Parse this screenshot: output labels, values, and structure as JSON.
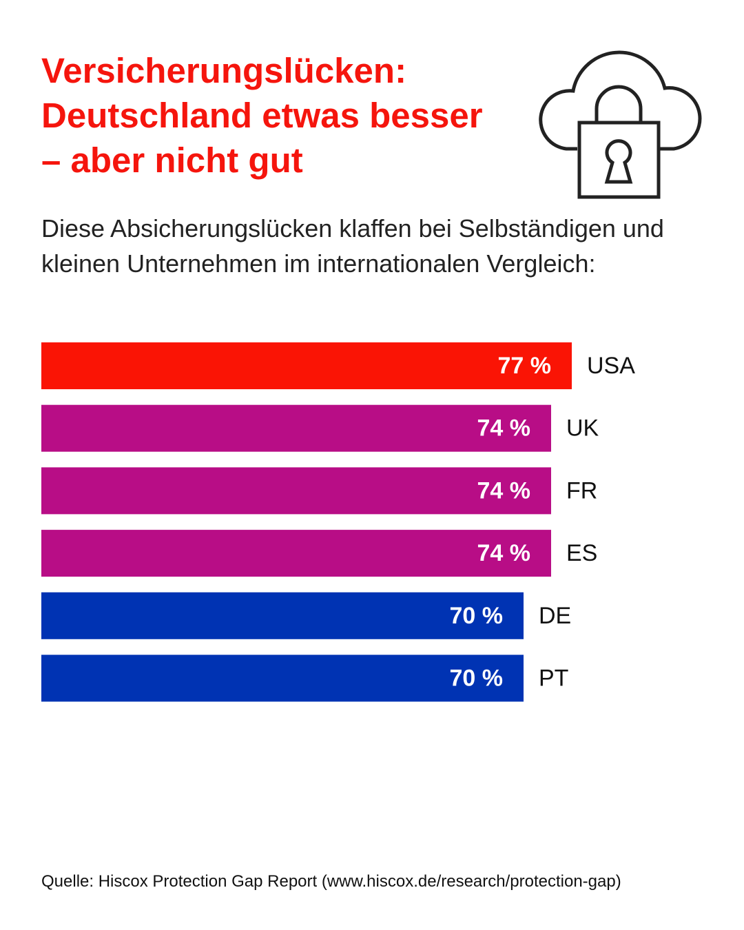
{
  "chart_data": {
    "type": "hbar",
    "title": "Versicherungslücken: Deutschland etwas besser – aber nicht gut",
    "subtitle": "Diese Absicherungslücken klaffen bei Selbständigen und kleinen Unternehmen im internationalen Vergleich:",
    "categories": [
      "USA",
      "UK",
      "FR",
      "ES",
      "DE",
      "PT"
    ],
    "values": [
      77,
      74,
      74,
      74,
      70,
      70
    ],
    "value_labels": [
      "77 %",
      "74 %",
      "74 %",
      "74 %",
      "70 %",
      "70 %"
    ],
    "colors": [
      "#fa1405",
      "#b80d86",
      "#b80d86",
      "#b80d86",
      "#0033b3",
      "#0033b3"
    ],
    "xlim": [
      0,
      100
    ],
    "source": "Quelle: Hiscox Protection Gap Report (www.hiscox.de/research/protection-gap)"
  }
}
